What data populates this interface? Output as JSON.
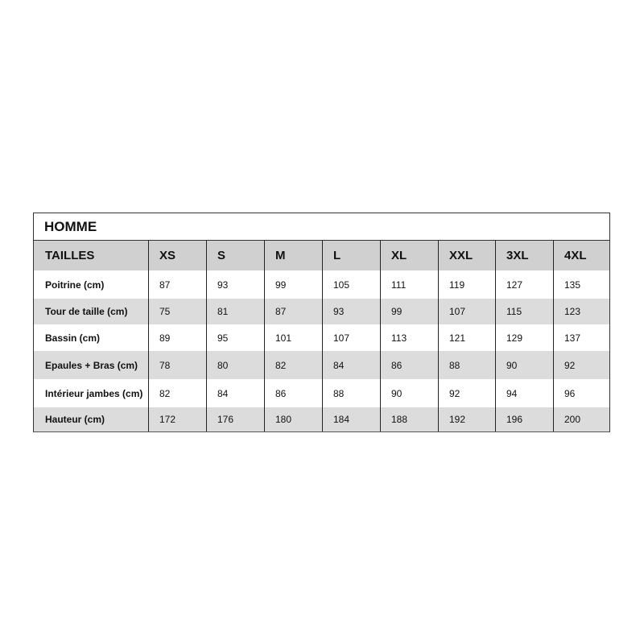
{
  "table": {
    "title": "HOMME",
    "header": [
      "TAILLES",
      "XS",
      "S",
      "M",
      "L",
      "XL",
      "XXL",
      "3XL",
      "4XL"
    ],
    "rows": [
      [
        "Poitrine (cm)",
        87,
        93,
        99,
        105,
        111,
        119,
        127,
        135
      ],
      [
        "Tour de taille (cm)",
        75,
        81,
        87,
        93,
        99,
        107,
        115,
        123
      ],
      [
        "Bassin (cm)",
        89,
        95,
        101,
        107,
        113,
        121,
        129,
        137
      ],
      [
        "Epaules + Bras (cm)",
        78,
        80,
        82,
        84,
        86,
        88,
        90,
        92
      ],
      [
        "Intérieur jambes (cm)",
        82,
        84,
        86,
        88,
        90,
        92,
        94,
        96
      ],
      [
        "Hauteur (cm)",
        172,
        176,
        180,
        184,
        188,
        192,
        196,
        200
      ]
    ]
  }
}
